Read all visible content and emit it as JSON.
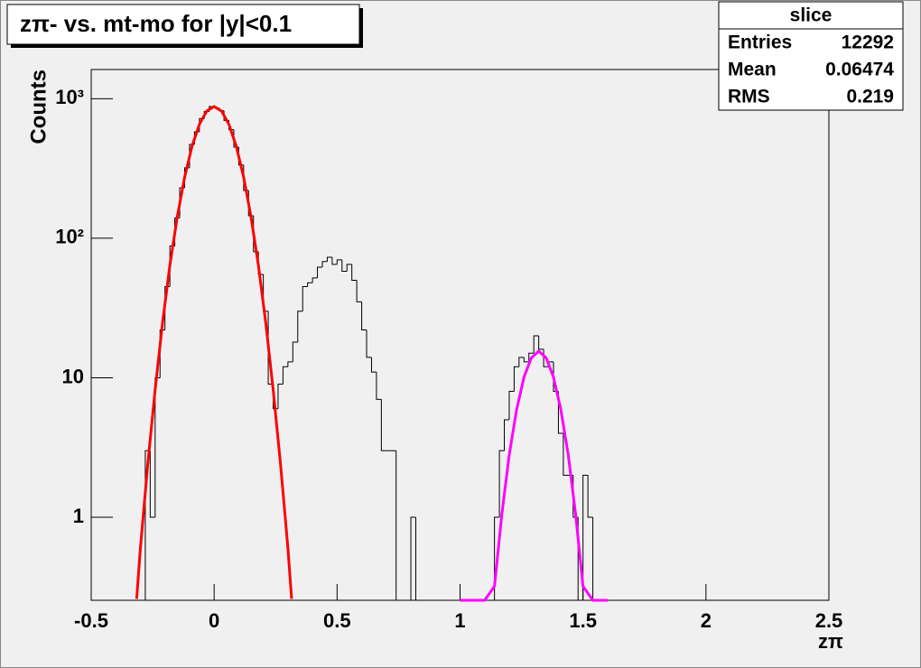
{
  "chart_data": {
    "type": "histogram",
    "title": "zπ- vs. mt-mo for |y|<0.1",
    "x_label": "zπ",
    "y_label": "Counts",
    "log_y": true,
    "color": "#000000",
    "bins": [
      -0.3,
      -0.28,
      -0.26,
      -0.24,
      -0.22,
      -0.2,
      -0.18,
      -0.16,
      -0.14,
      -0.12,
      -0.1,
      -0.08,
      -0.06,
      -0.04,
      -0.02,
      0,
      0.02,
      0.04,
      0.06,
      0.08,
      0.1,
      0.12,
      0.14,
      0.16,
      0.18,
      0.2,
      0.22,
      0.24,
      0.26,
      0.28,
      0.3,
      0.32,
      0.34,
      0.36,
      0.38,
      0.4,
      0.42,
      0.44,
      0.46,
      0.48,
      0.5,
      0.52,
      0.54,
      0.56,
      0.58,
      0.6,
      0.62,
      0.64,
      0.66,
      0.68,
      0.7,
      0.72,
      0.74,
      0.76,
      0.78,
      0.8,
      0.82,
      0.84,
      0.86,
      0.88,
      0.9,
      0.92,
      0.94,
      0.96,
      0.98,
      1,
      1.02,
      1.04,
      1.06,
      1.08,
      1.1,
      1.12,
      1.14,
      1.16,
      1.18,
      1.2,
      1.22,
      1.24,
      1.26,
      1.28,
      1.3,
      1.32,
      1.34,
      1.36,
      1.38,
      1.4,
      1.42,
      1.44,
      1.46,
      1.48,
      1.5,
      1.52,
      1.54,
      1.56,
      1.58,
      1.6
    ],
    "values": [
      0,
      3,
      1,
      10,
      22,
      45,
      88,
      140,
      230,
      320,
      470,
      580,
      720,
      810,
      880,
      860,
      820,
      700,
      600,
      450,
      335,
      220,
      145,
      80,
      55,
      30,
      9,
      6,
      9,
      12,
      13,
      18,
      30,
      45,
      48,
      52,
      62,
      68,
      73,
      65,
      70,
      58,
      65,
      50,
      35,
      22,
      14,
      11,
      7,
      3,
      3,
      3,
      0,
      0,
      0,
      1,
      0,
      0,
      0,
      0,
      0,
      0,
      0,
      0,
      0,
      0,
      0,
      0,
      0,
      0,
      0,
      0,
      1,
      3,
      5,
      8,
      12,
      14,
      13,
      15,
      20,
      16,
      12,
      13,
      8,
      4,
      2,
      2,
      1,
      0,
      2,
      1,
      0,
      0,
      0
    ],
    "fits": [
      {
        "color": "#ff0000",
        "x": [
          -0.315,
          -0.3,
          -0.27,
          -0.24,
          -0.21,
          -0.18,
          -0.15,
          -0.12,
          -0.09,
          -0.06,
          -0.03,
          0,
          0.03,
          0.06,
          0.09,
          0.12,
          0.15,
          0.18,
          0.21,
          0.24,
          0.27,
          0.3,
          0.315
        ],
        "values": [
          0.26,
          0.6,
          2.4,
          8.2,
          24.7,
          64,
          142,
          274,
          456,
          656,
          817,
          879,
          817,
          656,
          456,
          274,
          142,
          64,
          24.7,
          8.2,
          2.4,
          0.6,
          0.26
        ]
      },
      {
        "color": "#ff00ff",
        "x": [
          1.0,
          1.1,
          1.14,
          1.17,
          1.2,
          1.23,
          1.26,
          1.29,
          1.32,
          1.35,
          1.38,
          1.41,
          1.44,
          1.47,
          1.5,
          1.54,
          1.6
        ],
        "values": [
          8e-05,
          0.047,
          0.32,
          1.05,
          2.8,
          5.9,
          10.1,
          13.9,
          15.5,
          13.9,
          10.1,
          5.9,
          2.8,
          1.05,
          0.32,
          0.047,
          0.0013
        ]
      }
    ],
    "xlim": [
      -0.5,
      2.5
    ],
    "xticks": [
      -0.5,
      0,
      0.5,
      1,
      1.5,
      2,
      2.5
    ],
    "ylim": [
      0.254,
      1620
    ],
    "yticks": [
      1,
      10,
      {
        "value": 100,
        "label": "10²"
      },
      {
        "value": 1000,
        "label": "10³"
      }
    ],
    "stats": {
      "name": "slice",
      "labels": [
        "Entries",
        "Mean",
        "RMS"
      ],
      "values": [
        12292,
        0.06474,
        0.219
      ]
    }
  }
}
